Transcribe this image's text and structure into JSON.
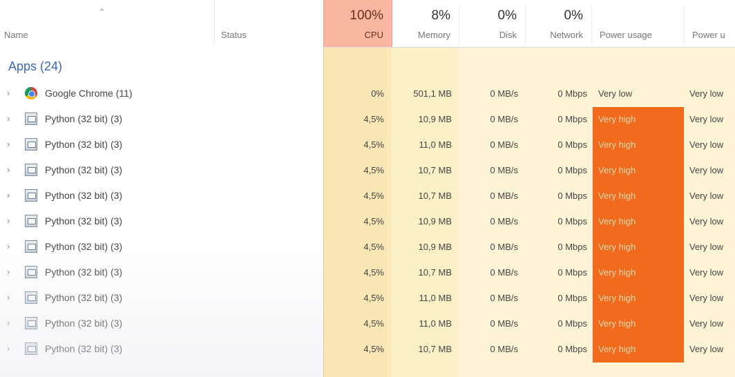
{
  "header": {
    "name_label": "Name",
    "status_label": "Status",
    "cpu": {
      "percent": "100%",
      "label": "CPU"
    },
    "memory": {
      "percent": "8%",
      "label": "Memory"
    },
    "disk": {
      "percent": "0%",
      "label": "Disk"
    },
    "network": {
      "percent": "0%",
      "label": "Network"
    },
    "power_label": "Power usage",
    "power_trend_label": "Power u"
  },
  "group": {
    "label": "Apps (24)"
  },
  "rows": [
    {
      "name": "Google Chrome (11)",
      "icon": "chrome-icon",
      "cpu": "0%",
      "memory": "501,1 MB",
      "disk": "0 MB/s",
      "network": "0 Mbps",
      "power": "Very low",
      "power_trend": "Very low",
      "high": false
    },
    {
      "name": "Python (32 bit) (3)",
      "icon": "python-app-icon",
      "cpu": "4,5%",
      "memory": "10,9 MB",
      "disk": "0 MB/s",
      "network": "0 Mbps",
      "power": "Very high",
      "power_trend": "Very low",
      "high": true
    },
    {
      "name": "Python (32 bit) (3)",
      "icon": "python-app-icon",
      "cpu": "4,5%",
      "memory": "11,0 MB",
      "disk": "0 MB/s",
      "network": "0 Mbps",
      "power": "Very high",
      "power_trend": "Very low",
      "high": true
    },
    {
      "name": "Python (32 bit) (3)",
      "icon": "python-app-icon",
      "cpu": "4,5%",
      "memory": "10,7 MB",
      "disk": "0 MB/s",
      "network": "0 Mbps",
      "power": "Very high",
      "power_trend": "Very low",
      "high": true
    },
    {
      "name": "Python (32 bit) (3)",
      "icon": "python-app-icon",
      "cpu": "4,5%",
      "memory": "10,7 MB",
      "disk": "0 MB/s",
      "network": "0 Mbps",
      "power": "Very high",
      "power_trend": "Very low",
      "high": true
    },
    {
      "name": "Python (32 bit) (3)",
      "icon": "python-app-icon",
      "cpu": "4,5%",
      "memory": "10,9 MB",
      "disk": "0 MB/s",
      "network": "0 Mbps",
      "power": "Very high",
      "power_trend": "Very low",
      "high": true
    },
    {
      "name": "Python (32 bit) (3)",
      "icon": "python-app-icon",
      "cpu": "4,5%",
      "memory": "10,9 MB",
      "disk": "0 MB/s",
      "network": "0 Mbps",
      "power": "Very high",
      "power_trend": "Very low",
      "high": true
    },
    {
      "name": "Python (32 bit) (3)",
      "icon": "python-app-icon",
      "cpu": "4,5%",
      "memory": "10,7 MB",
      "disk": "0 MB/s",
      "network": "0 Mbps",
      "power": "Very high",
      "power_trend": "Very low",
      "high": true
    },
    {
      "name": "Python (32 bit) (3)",
      "icon": "python-app-icon",
      "cpu": "4,5%",
      "memory": "11,0 MB",
      "disk": "0 MB/s",
      "network": "0 Mbps",
      "power": "Very high",
      "power_trend": "Very low",
      "high": true
    },
    {
      "name": "Python (32 bit) (3)",
      "icon": "python-app-icon",
      "cpu": "4,5%",
      "memory": "11,0 MB",
      "disk": "0 MB/s",
      "network": "0 Mbps",
      "power": "Very high",
      "power_trend": "Very low",
      "high": true
    },
    {
      "name": "Python (32 bit) (3)",
      "icon": "python-app-icon",
      "cpu": "4,5%",
      "memory": "10,7 MB",
      "disk": "0 MB/s",
      "network": "0 Mbps",
      "power": "Very high",
      "power_trend": "Very low",
      "high": true
    }
  ]
}
